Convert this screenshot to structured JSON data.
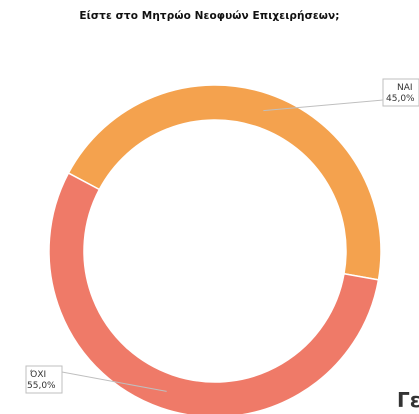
{
  "chart_data": {
    "type": "pie",
    "title": "Είστε στο Μητρώο Νεοφυών Επιχειρήσεων;",
    "donut": true,
    "categories": [
      "ΝΑΙ",
      "ΌΧΙ"
    ],
    "values": [
      45.0,
      55.0
    ],
    "data_labels": [
      "45,0%",
      "55,0%"
    ],
    "colors": [
      "#F4A24E",
      "#EF7A68"
    ],
    "legend": "none"
  },
  "page_fragment": {
    "text": "Γε"
  }
}
